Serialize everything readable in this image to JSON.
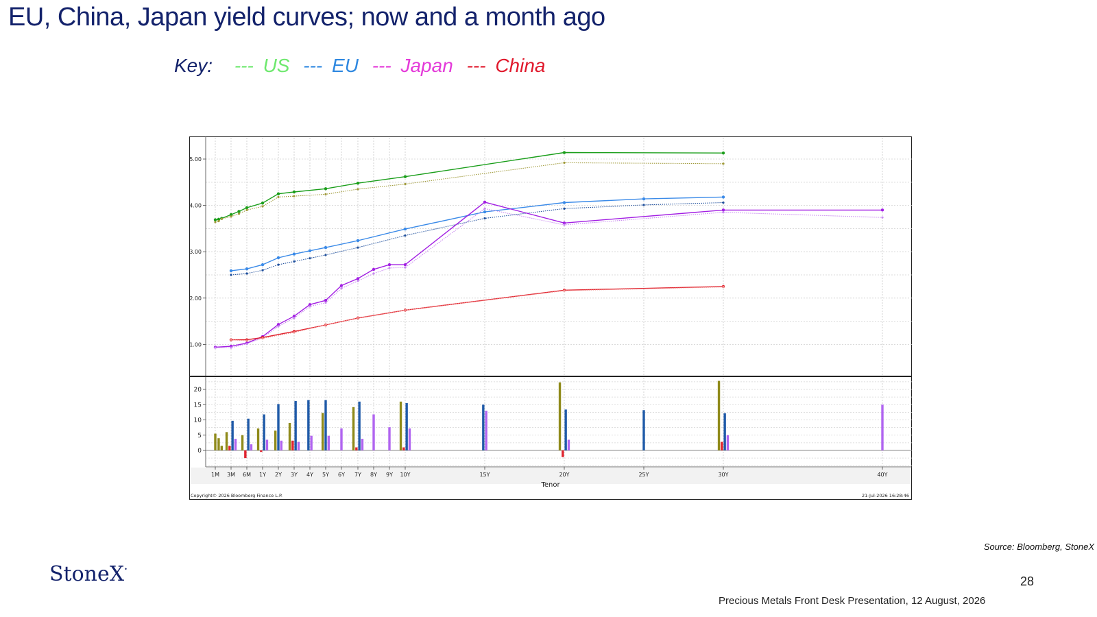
{
  "slide": {
    "title": "EU, China, Japan yield curves; now and a month ago",
    "key": {
      "label": "Key:",
      "items": [
        {
          "dash": "---",
          "name": "US",
          "color": "#6ee86e"
        },
        {
          "dash": "---",
          "name": "EU",
          "color": "#2f88e0"
        },
        {
          "dash": "---",
          "name": "Japan",
          "color": "#e43ad9"
        },
        {
          "dash": "---",
          "name": "China",
          "color": "#e0192c"
        }
      ],
      "label_color": "#13226b"
    },
    "source": "Source: Bloomberg, StoneX",
    "logo": "StoneX",
    "page_number": "28",
    "footer": "Precious Metals Front Desk Presentation, 12 August, 2026"
  },
  "chart_data": {
    "type": "line",
    "xlabel": "Tenor",
    "copyright": "Copyright© 2026 Bloomberg Finance L.P.",
    "timestamp": "21-Jul-2026 16:28:46",
    "x_ticks": [
      "1M",
      "3M",
      "6M",
      "1Y",
      "2Y",
      "3Y",
      "4Y",
      "5Y",
      "6Y",
      "7Y",
      "8Y",
      "9Y",
      "10Y",
      "15Y",
      "20Y",
      "25Y",
      "30Y",
      "40Y"
    ],
    "top_panel": {
      "ylim": [
        0.6,
        5.5
      ],
      "y_ticks": [
        "1.00",
        "2.00",
        "3.00",
        "4.00",
        "5.00"
      ],
      "series": [
        {
          "name": "",
          "color": "#1a9e1a",
          "style": "solid",
          "points": [
            [
              0.08,
              3.69
            ],
            [
              0.17,
              3.7
            ],
            [
              0.25,
              3.72
            ],
            [
              0.5,
              3.8
            ],
            [
              0.75,
              3.87
            ],
            [
              1,
              3.95
            ],
            [
              1.5,
              4.05
            ],
            [
              2,
              4.25
            ],
            [
              3,
              4.29
            ],
            [
              5,
              4.36
            ],
            [
              7,
              4.48
            ],
            [
              10,
              4.62
            ],
            [
              20,
              5.14
            ],
            [
              30,
              5.13
            ]
          ]
        },
        {
          "name": "",
          "color": "#a09a3a",
          "style": "dotted",
          "points": [
            [
              0.08,
              3.64
            ],
            [
              0.17,
              3.66
            ],
            [
              0.25,
              3.71
            ],
            [
              0.5,
              3.76
            ],
            [
              0.75,
              3.82
            ],
            [
              1,
              3.9
            ],
            [
              1.5,
              3.98
            ],
            [
              2,
              4.18
            ],
            [
              3,
              4.2
            ],
            [
              5,
              4.24
            ],
            [
              7,
              4.35
            ],
            [
              10,
              4.46
            ],
            [
              20,
              4.92
            ],
            [
              30,
              4.9
            ]
          ]
        },
        {
          "name": "",
          "color": "#3a8ae8",
          "style": "solid",
          "points": [
            [
              0.5,
              2.59
            ],
            [
              1,
              2.63
            ],
            [
              1.5,
              2.72
            ],
            [
              2,
              2.87
            ],
            [
              3,
              2.95
            ],
            [
              4,
              3.02
            ],
            [
              5,
              3.09
            ],
            [
              7,
              3.24
            ],
            [
              10,
              3.49
            ],
            [
              15,
              3.86
            ],
            [
              20,
              4.06
            ],
            [
              25,
              4.14
            ],
            [
              30,
              4.18
            ]
          ]
        },
        {
          "name": "",
          "color": "#1f4f9c",
          "style": "dotted",
          "points": [
            [
              0.5,
              2.5
            ],
            [
              1,
              2.53
            ],
            [
              1.5,
              2.6
            ],
            [
              2,
              2.72
            ],
            [
              3,
              2.79
            ],
            [
              4,
              2.86
            ],
            [
              5,
              2.93
            ],
            [
              7,
              3.09
            ],
            [
              10,
              3.35
            ],
            [
              15,
              3.72
            ],
            [
              20,
              3.93
            ],
            [
              25,
              4.01
            ],
            [
              30,
              4.06
            ]
          ]
        },
        {
          "name": "",
          "color": "#a21ee3",
          "style": "solid",
          "points": [
            [
              0.08,
              0.94
            ],
            [
              0.5,
              0.96
            ],
            [
              1,
              1.03
            ],
            [
              1.5,
              1.17
            ],
            [
              2,
              1.43
            ],
            [
              3,
              1.61
            ],
            [
              4,
              1.86
            ],
            [
              5,
              1.95
            ],
            [
              6,
              2.27
            ],
            [
              7,
              2.42
            ],
            [
              8,
              2.62
            ],
            [
              9,
              2.72
            ],
            [
              10,
              2.72
            ],
            [
              15,
              4.07
            ],
            [
              20,
              3.62
            ],
            [
              30,
              3.9
            ],
            [
              40,
              3.9
            ]
          ]
        },
        {
          "name": "",
          "color": "#c98af0",
          "style": "dotted",
          "points": [
            [
              0.08,
              0.93
            ],
            [
              0.5,
              0.93
            ],
            [
              1,
              1.01
            ],
            [
              1.5,
              1.14
            ],
            [
              2,
              1.39
            ],
            [
              3,
              1.57
            ],
            [
              4,
              1.82
            ],
            [
              5,
              1.9
            ],
            [
              6,
              2.21
            ],
            [
              7,
              2.37
            ],
            [
              8,
              2.53
            ],
            [
              9,
              2.65
            ],
            [
              10,
              2.66
            ],
            [
              15,
              3.93
            ],
            [
              20,
              3.58
            ],
            [
              30,
              3.85
            ],
            [
              40,
              3.74
            ]
          ]
        },
        {
          "name": "",
          "color": "#e0242f",
          "style": "solid",
          "points": [
            [
              0.5,
              1.1
            ],
            [
              1,
              1.1
            ],
            [
              1.5,
              1.15
            ],
            [
              3,
              1.28
            ],
            [
              5,
              1.42
            ],
            [
              7,
              1.57
            ],
            [
              10,
              1.74
            ],
            [
              20,
              2.17
            ],
            [
              30,
              2.25
            ]
          ]
        },
        {
          "name": "",
          "color": "#f08a8a",
          "style": "dotted",
          "points": [
            [
              0.5,
              1.1
            ],
            [
              1,
              1.08
            ],
            [
              1.5,
              1.13
            ],
            [
              3,
              1.26
            ],
            [
              5,
              1.42
            ],
            [
              7,
              1.57
            ],
            [
              10,
              1.74
            ],
            [
              20,
              2.16
            ],
            [
              30,
              2.24
            ]
          ]
        }
      ]
    },
    "bottom_panel": {
      "type": "bar",
      "ylim": [
        -5,
        25
      ],
      "y_ticks": [
        "20",
        "15",
        "10",
        "5",
        "0"
      ],
      "groups": [
        {
          "tenor": 0.08,
          "bars": [
            {
              "color": "#8f8a1a",
              "value": 5.5
            }
          ]
        },
        {
          "tenor": 0.17,
          "bars": [
            {
              "color": "#8f8a1a",
              "value": 4
            }
          ]
        },
        {
          "tenor": 0.25,
          "bars": [
            {
              "color": "#8f8a1a",
              "value": 1.5
            }
          ]
        },
        {
          "tenor": 0.5,
          "bars": [
            {
              "color": "#8f8a1a",
              "value": 6
            },
            {
              "color": "#e0242f",
              "value": 1.5
            },
            {
              "color": "#1f5aa8",
              "value": 9.7
            },
            {
              "color": "#b064f0",
              "value": 3.8
            }
          ]
        },
        {
          "tenor": 1,
          "bars": [
            {
              "color": "#8f8a1a",
              "value": 5
            },
            {
              "color": "#e0242f",
              "value": -2.5
            },
            {
              "color": "#1f5aa8",
              "value": 10.4
            },
            {
              "color": "#b064f0",
              "value": 2
            }
          ]
        },
        {
          "tenor": 1.5,
          "bars": [
            {
              "color": "#8f8a1a",
              "value": 7.2
            },
            {
              "color": "#e0242f",
              "value": -0.5
            },
            {
              "color": "#1f5aa8",
              "value": 11.8
            },
            {
              "color": "#b064f0",
              "value": 3.5
            }
          ]
        },
        {
          "tenor": 2,
          "bars": [
            {
              "color": "#8f8a1a",
              "value": 6.5
            },
            {
              "color": "#1f5aa8",
              "value": 15.2
            },
            {
              "color": "#b064f0",
              "value": 3.2
            }
          ]
        },
        {
          "tenor": 3,
          "bars": [
            {
              "color": "#8f8a1a",
              "value": 9
            },
            {
              "color": "#e0242f",
              "value": 3.2
            },
            {
              "color": "#1f5aa8",
              "value": 16.2
            },
            {
              "color": "#b064f0",
              "value": 2.8
            }
          ]
        },
        {
          "tenor": 4,
          "bars": [
            {
              "color": "#1f5aa8",
              "value": 16.5
            },
            {
              "color": "#b064f0",
              "value": 4.8
            }
          ]
        },
        {
          "tenor": 5,
          "bars": [
            {
              "color": "#8f8a1a",
              "value": 12.3
            },
            {
              "color": "#1f5aa8",
              "value": 16.5
            },
            {
              "color": "#b064f0",
              "value": 4.8
            }
          ]
        },
        {
          "tenor": 6,
          "bars": [
            {
              "color": "#b064f0",
              "value": 7.2
            }
          ]
        },
        {
          "tenor": 7,
          "bars": [
            {
              "color": "#8f8a1a",
              "value": 14.2
            },
            {
              "color": "#e0242f",
              "value": 1
            },
            {
              "color": "#1f5aa8",
              "value": 16
            },
            {
              "color": "#b064f0",
              "value": 3.8
            }
          ]
        },
        {
          "tenor": 8,
          "bars": [
            {
              "color": "#b064f0",
              "value": 11.8
            }
          ]
        },
        {
          "tenor": 9,
          "bars": [
            {
              "color": "#b064f0",
              "value": 7.6
            }
          ]
        },
        {
          "tenor": 10,
          "bars": [
            {
              "color": "#8f8a1a",
              "value": 16
            },
            {
              "color": "#e0242f",
              "value": 1
            },
            {
              "color": "#1f5aa8",
              "value": 15.5
            },
            {
              "color": "#b064f0",
              "value": 7.2
            }
          ]
        },
        {
          "tenor": 15,
          "bars": [
            {
              "color": "#1f5aa8",
              "value": 15
            },
            {
              "color": "#b064f0",
              "value": 13
            }
          ]
        },
        {
          "tenor": 20,
          "bars": [
            {
              "color": "#8f8a1a",
              "value": 22.3
            },
            {
              "color": "#e0242f",
              "value": -2.2
            },
            {
              "color": "#1f5aa8",
              "value": 13.4
            },
            {
              "color": "#b064f0",
              "value": 3.5
            }
          ]
        },
        {
          "tenor": 25,
          "bars": [
            {
              "color": "#1f5aa8",
              "value": 13.2
            }
          ]
        },
        {
          "tenor": 30,
          "bars": [
            {
              "color": "#8f8a1a",
              "value": 22.8
            },
            {
              "color": "#e0242f",
              "value": 2.8
            },
            {
              "color": "#1f5aa8",
              "value": 12.2
            },
            {
              "color": "#b064f0",
              "value": 5
            }
          ]
        },
        {
          "tenor": 40,
          "bars": [
            {
              "color": "#b064f0",
              "value": 15
            }
          ]
        }
      ]
    }
  }
}
